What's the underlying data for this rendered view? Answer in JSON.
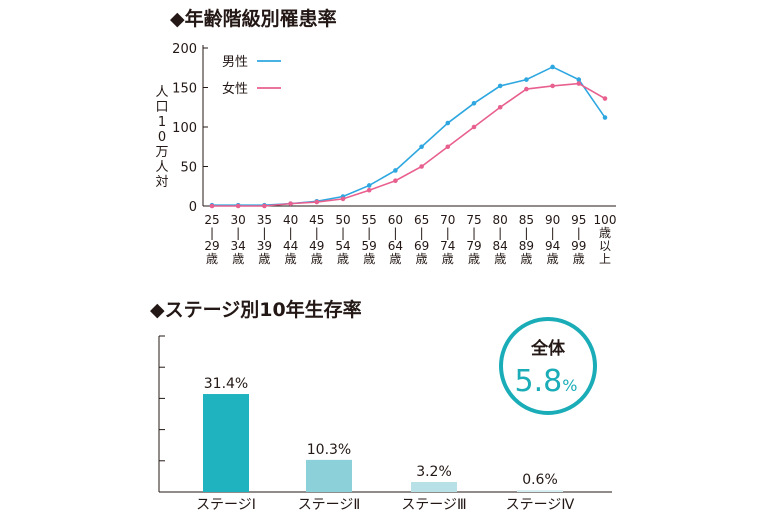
{
  "chart_data": [
    {
      "type": "line",
      "title": "◆年齢階級別罹患率",
      "ylabel": "人口10万人対",
      "ylim": [
        0,
        200
      ],
      "yticks": [
        "0",
        "50",
        "100",
        "150",
        "200"
      ],
      "categories": [
        "25\n|\n29\n歳",
        "30\n|\n34\n歳",
        "35\n|\n39\n歳",
        "40\n|\n44\n歳",
        "45\n|\n49\n歳",
        "50\n|\n54\n歳",
        "55\n|\n59\n歳",
        "60\n|\n64\n歳",
        "65\n|\n69\n歳",
        "70\n|\n74\n歳",
        "75\n|\n79\n歳",
        "80\n|\n84\n歳",
        "85\n|\n89\n歳",
        "90\n|\n94\n歳",
        "95\n|\n99\n歳",
        "100\n歳\n以\n上"
      ],
      "grid": false,
      "legend_position": "top-left",
      "series": [
        {
          "name": "男性",
          "color": "#2ea7e0",
          "values": [
            1,
            1,
            1,
            3,
            6,
            12,
            26,
            45,
            75,
            105,
            130,
            152,
            160,
            176,
            160,
            112
          ]
        },
        {
          "name": "女性",
          "color": "#e8608f",
          "values": [
            0,
            0,
            0,
            3,
            5,
            9,
            20,
            32,
            50,
            75,
            100,
            125,
            148,
            152,
            155,
            136
          ]
        }
      ]
    },
    {
      "type": "bar",
      "title": "◆ステージ別10年生存率",
      "categories": [
        "ステージⅠ",
        "ステージⅡ",
        "ステージⅢ",
        "ステージⅣ"
      ],
      "values": [
        31.4,
        10.3,
        3.2,
        0.6
      ],
      "value_labels": [
        "31.4%",
        "10.3%",
        "3.2%",
        "0.6%"
      ],
      "colors": [
        "#1fb2bf",
        "#8cd0d9",
        "#b7e1e6",
        "#d5eef1"
      ],
      "ylim": [
        0,
        50
      ],
      "grid": false,
      "total": {
        "label": "全体",
        "value": "5.8",
        "unit": "%",
        "color": "#1aadb8"
      }
    }
  ]
}
